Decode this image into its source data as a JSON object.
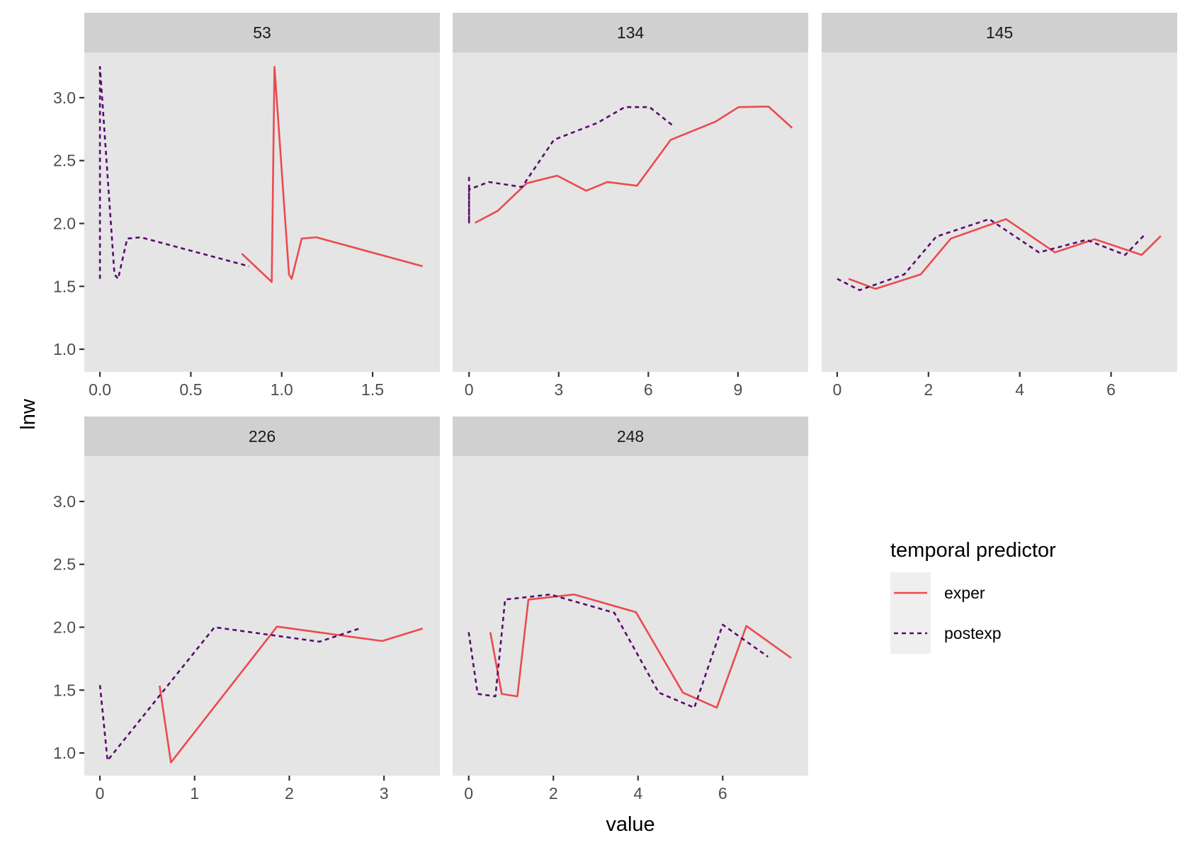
{
  "chart_data": {
    "type": "line",
    "facet_by": "id",
    "xlabel": "value",
    "ylabel": "lnw",
    "y_ticks": [
      1.0,
      1.5,
      2.0,
      2.5,
      3.0
    ],
    "y_tick_labels": [
      "1.0",
      "1.5",
      "2.0",
      "2.5",
      "3.0"
    ],
    "ylim": [
      0.82,
      3.36
    ],
    "grid": false,
    "legend": {
      "title": "temporal predictor",
      "placement": "right",
      "entries": [
        {
          "name": "exper",
          "color": "#EB4A4F",
          "dash": "solid"
        },
        {
          "name": "postexp",
          "color": "#5A0A6E",
          "dash": "dotted"
        }
      ]
    },
    "panels": [
      {
        "label": "53",
        "xlim": [
          -0.086,
          1.87
        ],
        "x_ticks": [
          0.0,
          0.5,
          1.0,
          1.5
        ],
        "x_tick_labels": [
          "0.0",
          "0.5",
          "1.0",
          "1.5"
        ],
        "series": [
          {
            "name": "exper",
            "x": [
              0.78,
              0.945,
              0.96,
              1.04,
              1.055,
              1.11,
              1.19,
              1.775
            ],
            "y": [
              1.76,
              1.535,
              3.245,
              1.595,
              1.56,
              1.88,
              1.89,
              1.66
            ]
          },
          {
            "name": "postexp",
            "x": [
              0.0,
              0.0,
              0.08,
              0.1,
              0.15,
              0.225,
              0.82
            ],
            "y": [
              1.56,
              3.245,
              1.595,
              1.56,
              1.88,
              1.89,
              1.66
            ]
          }
        ]
      },
      {
        "label": "134",
        "xlim": [
          -0.55,
          11.35
        ],
        "x_ticks": [
          0,
          3,
          6,
          9
        ],
        "x_tick_labels": [
          "0",
          "3",
          "6",
          "9"
        ],
        "series": [
          {
            "name": "exper",
            "x": [
              0.2,
              0.96,
              1.93,
              2.95,
              3.92,
              4.63,
              5.62,
              6.75,
              8.25,
              9.02,
              10.02,
              10.81
            ],
            "y": [
              2.005,
              2.1,
              2.32,
              2.38,
              2.26,
              2.33,
              2.3,
              2.665,
              2.81,
              2.925,
              2.93,
              2.76
            ]
          },
          {
            "name": "postexp",
            "x": [
              0.0,
              0.0,
              0.0,
              0.66,
              1.77,
              2.84,
              4.3,
              5.21,
              6.04,
              6.81
            ],
            "y": [
              2.37,
              2.0,
              2.27,
              2.33,
              2.29,
              2.665,
              2.8,
              2.925,
              2.925,
              2.78
            ]
          }
        ]
      },
      {
        "label": "145",
        "xlim": [
          -0.34,
          7.45
        ],
        "x_ticks": [
          0,
          2,
          4,
          6
        ],
        "x_tick_labels": [
          "0",
          "2",
          "4",
          "6"
        ],
        "series": [
          {
            "name": "exper",
            "x": [
              0.25,
              0.84,
              1.83,
              2.49,
              3.7,
              4.77,
              5.64,
              6.67,
              7.09
            ],
            "y": [
              1.56,
              1.48,
              1.595,
              1.88,
              2.035,
              1.77,
              1.875,
              1.75,
              1.9
            ]
          },
          {
            "name": "postexp",
            "x": [
              0.0,
              0.49,
              1.47,
              2.17,
              3.33,
              4.42,
              5.46,
              6.31,
              6.72
            ],
            "y": [
              1.56,
              1.47,
              1.595,
              1.895,
              2.035,
              1.77,
              1.87,
              1.75,
              1.905
            ]
          }
        ]
      },
      {
        "label": "226",
        "xlim": [
          -0.165,
          3.59
        ],
        "x_ticks": [
          0,
          1,
          2,
          3
        ],
        "x_tick_labels": [
          "0",
          "1",
          "2",
          "3"
        ],
        "series": [
          {
            "name": "exper",
            "x": [
              0.63,
              0.75,
              1.87,
              2.98,
              3.41
            ],
            "y": [
              1.535,
              0.925,
              2.005,
              1.89,
              1.99
            ]
          },
          {
            "name": "postexp",
            "x": [
              0.0,
              0.08,
              1.21,
              2.32,
              2.74
            ],
            "y": [
              1.54,
              0.94,
              2.0,
              1.885,
              1.99
            ]
          }
        ]
      },
      {
        "label": "248",
        "xlim": [
          -0.38,
          8.02
        ],
        "x_ticks": [
          0,
          2,
          4,
          6
        ],
        "x_tick_labels": [
          "0",
          "2",
          "4",
          "6"
        ],
        "series": [
          {
            "name": "exper",
            "x": [
              0.51,
              0.78,
              1.15,
              1.41,
              2.49,
              3.95,
              5.06,
              5.86,
              6.56,
              7.62
            ],
            "y": [
              1.96,
              1.47,
              1.45,
              2.22,
              2.26,
              2.12,
              1.48,
              1.36,
              2.01,
              1.755
            ]
          },
          {
            "name": "postexp",
            "x": [
              0.0,
              0.21,
              0.63,
              0.86,
              1.93,
              3.44,
              4.49,
              5.33,
              6.0,
              7.07
            ],
            "y": [
              1.96,
              1.47,
              1.45,
              2.22,
              2.26,
              2.115,
              1.48,
              1.36,
              2.02,
              1.765
            ]
          }
        ]
      }
    ]
  }
}
